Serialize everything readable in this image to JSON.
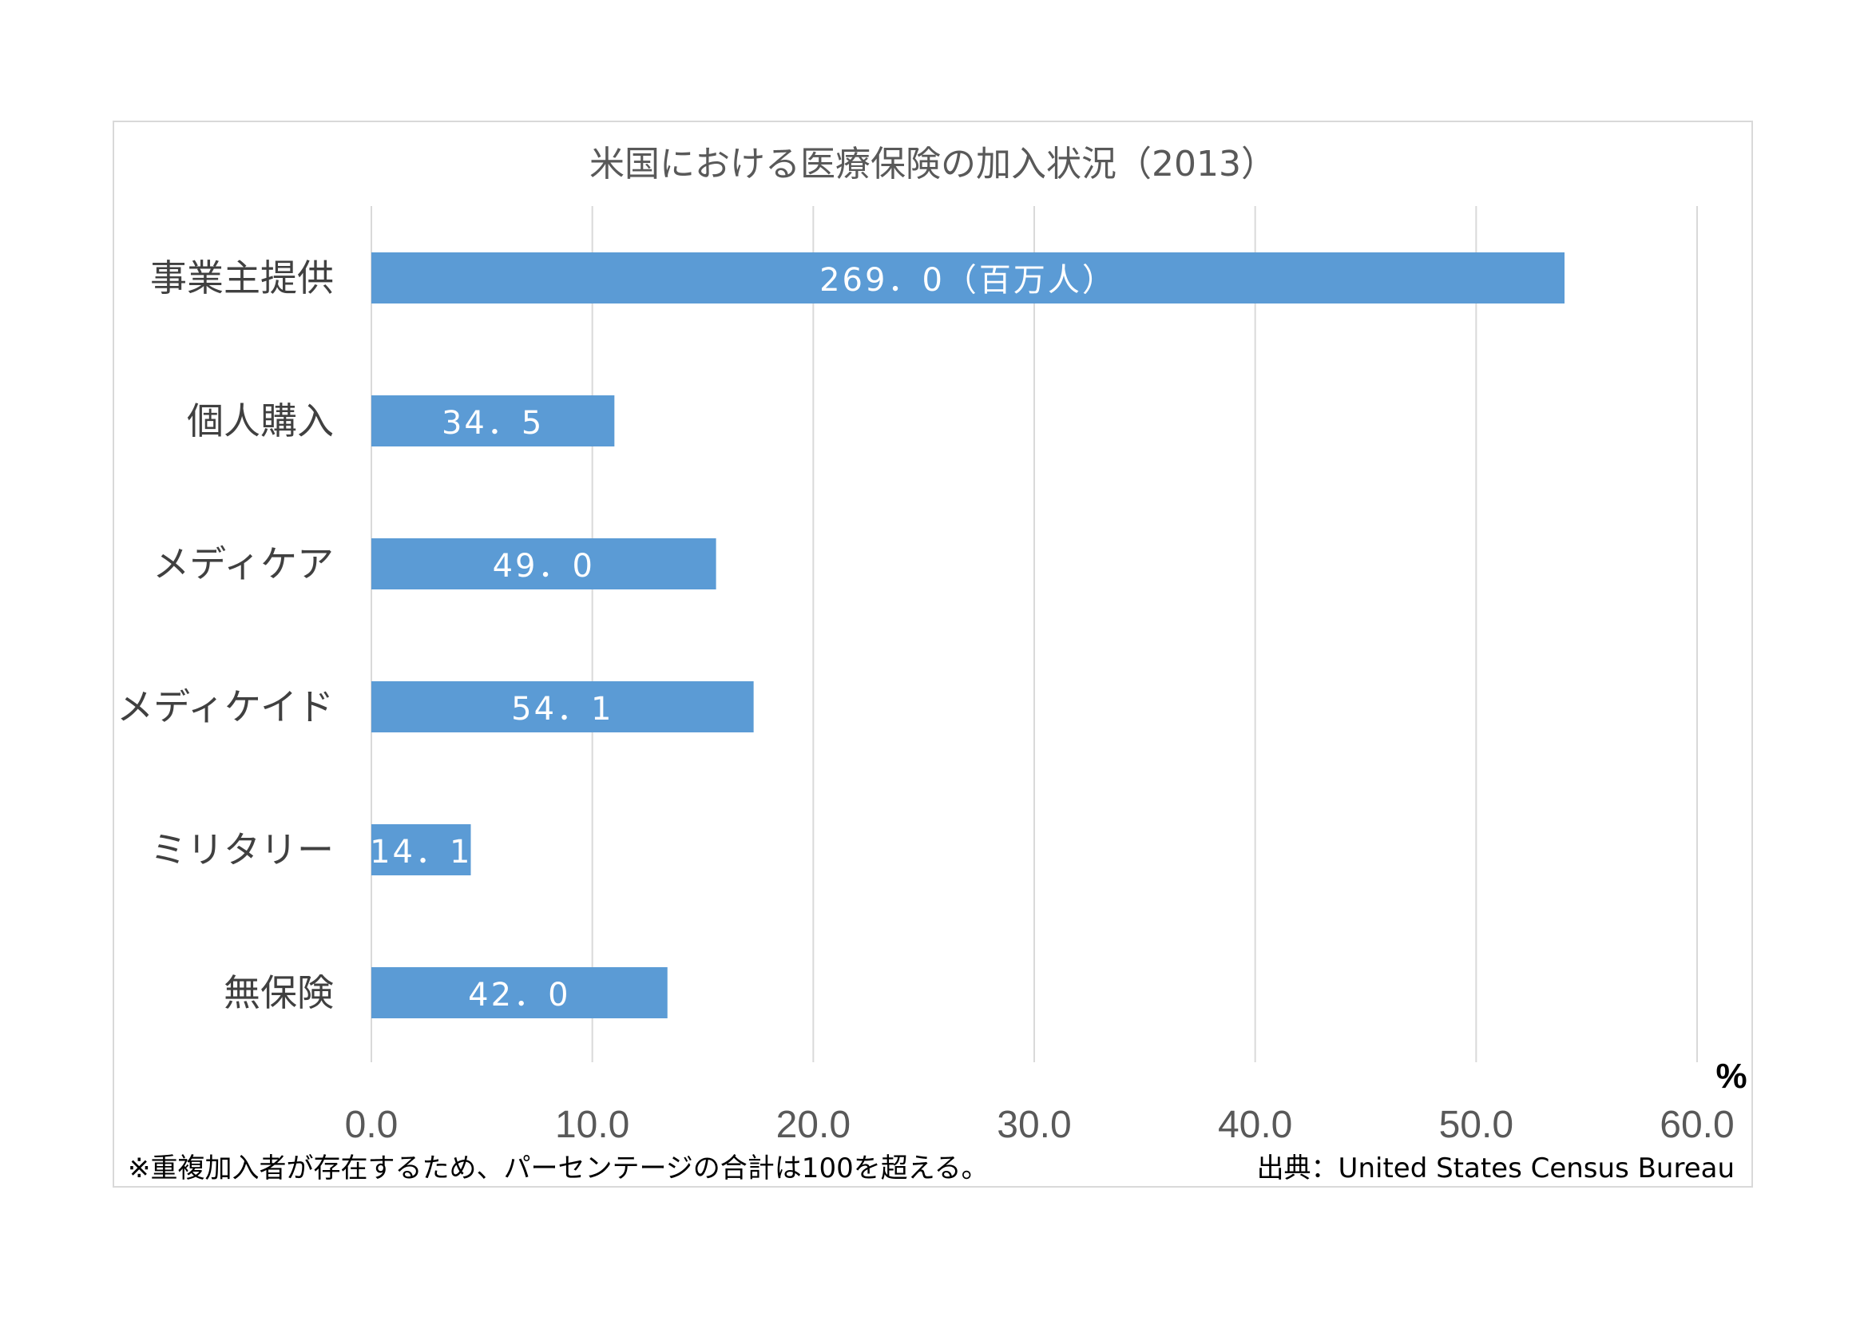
{
  "chart_data": {
    "type": "bar",
    "orientation": "horizontal",
    "title": "米国における医療保険の加入状況（2013）",
    "categories": [
      "事業主提供",
      "個人購入",
      "メディケア",
      "メディケイド",
      "ミリタリー",
      "無保険"
    ],
    "values": [
      54.0,
      11.0,
      15.6,
      17.3,
      4.5,
      13.4
    ],
    "data_labels": [
      "269．0（百万人）",
      "34．5",
      "49．0",
      "54．1",
      "14．1",
      "42．0"
    ],
    "xlim": [
      0,
      60
    ],
    "x_ticks": [
      "0.0",
      "10.0",
      "20.0",
      "30.0",
      "40.0",
      "50.0",
      "60.0"
    ],
    "unit": "%",
    "grid": true,
    "legend": "none",
    "bar_color": "#5b9bd5"
  },
  "footer": {
    "note": "※重複加入者が存在するため、パーセンテージの合計は100を超える。",
    "source": "出典：United States Census Bureau"
  }
}
